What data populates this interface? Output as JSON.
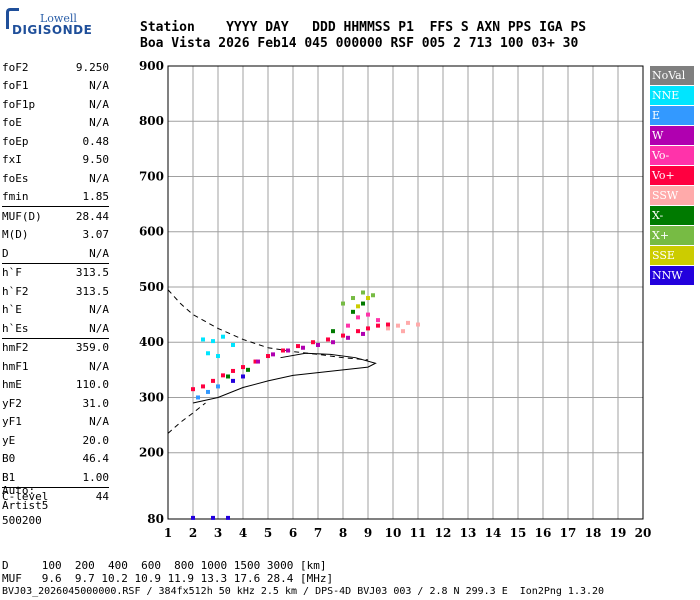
{
  "logo": {
    "brand_top": "Lowell",
    "brand_main": "DIGISONDE"
  },
  "header": {
    "line1": "Station    YYYY DAY   DDD HHMMSS P1  FFS S AXN PPS IGA PS",
    "line2": "Boa Vista 2026 Feb14 045 000000 RSF 005 2 713 100 03+ 30"
  },
  "parameters": [
    {
      "name": "foF2",
      "value": "9.250"
    },
    {
      "name": "foF1",
      "value": "N/A"
    },
    {
      "name": "foF1p",
      "value": "N/A"
    },
    {
      "name": "foE",
      "value": "N/A"
    },
    {
      "name": "foEp",
      "value": "0.48"
    },
    {
      "name": "fxI",
      "value": "9.50"
    },
    {
      "name": "foEs",
      "value": "N/A"
    },
    {
      "name": "fmin",
      "value": "1.85"
    },
    {
      "name": "MUF(D)",
      "value": "28.44",
      "sep": true
    },
    {
      "name": "M(D)",
      "value": "3.07"
    },
    {
      "name": "D",
      "value": "N/A"
    },
    {
      "name": "h`F",
      "value": "313.5",
      "sep": true
    },
    {
      "name": "h`F2",
      "value": "313.5"
    },
    {
      "name": "h`E",
      "value": "N/A"
    },
    {
      "name": "h`Es",
      "value": "N/A"
    },
    {
      "name": "hmF2",
      "value": "359.0",
      "sep": true
    },
    {
      "name": "hmF1",
      "value": "N/A"
    },
    {
      "name": "hmE",
      "value": "110.0"
    },
    {
      "name": "yF2",
      "value": "31.0"
    },
    {
      "name": "yF1",
      "value": "N/A"
    },
    {
      "name": "yE",
      "value": "20.0"
    },
    {
      "name": "B0",
      "value": "46.4"
    },
    {
      "name": "B1",
      "value": "1.00"
    },
    {
      "name": "C-level",
      "value": "44",
      "sep": true
    }
  ],
  "scaling": {
    "line1": "Auto:",
    "line2": "Artist5",
    "line3": "500200"
  },
  "muf_table": {
    "d_row": "D     100  200  400  600  800 1000 1500 3000 [km]",
    "muf_row": "MUF   9.6  9.7 10.2 10.9 11.9 13.3 17.6 28.4 [MHz]"
  },
  "footer": "BVJ03_2026045000000.RSF / 384fx512h 50 kHz 2.5 km / DPS-4D BVJ03 003 / 2.8 N 299.3 E  Ion2Png 1.3.20",
  "legend": [
    {
      "label": "NoVal",
      "color": "#7f7f7f"
    },
    {
      "label": "NNE",
      "color": "#00e5ff"
    },
    {
      "label": "E",
      "color": "#3399ff"
    },
    {
      "label": "W",
      "color": "#b000b0"
    },
    {
      "label": "Vo-",
      "color": "#ff33aa"
    },
    {
      "label": "Vo+",
      "color": "#ff0040"
    },
    {
      "label": "SSW",
      "color": "#ffaaaa"
    },
    {
      "label": "X-",
      "color": "#007a00"
    },
    {
      "label": "X+",
      "color": "#77bb44"
    },
    {
      "label": "SSE",
      "color": "#cccc00"
    },
    {
      "label": "NNW",
      "color": "#2200dd"
    }
  ],
  "chart_data": {
    "type": "scatter",
    "xlim": [
      1,
      20
    ],
    "ylim": [
      80,
      900
    ],
    "x_ticks": [
      1,
      2,
      3,
      4,
      5,
      6,
      7,
      8,
      9,
      10,
      11,
      12,
      13,
      14,
      15,
      16,
      17,
      18,
      19,
      20
    ],
    "y_ticks": [
      80,
      200,
      300,
      400,
      500,
      600,
      700,
      800,
      900
    ],
    "grid": true,
    "series": [
      {
        "name": "Vo+",
        "color": "#ff0040",
        "points": [
          [
            2.0,
            315
          ],
          [
            2.4,
            320
          ],
          [
            2.8,
            330
          ],
          [
            3.2,
            340
          ],
          [
            3.6,
            348
          ],
          [
            4.0,
            355
          ],
          [
            4.5,
            365
          ],
          [
            5.0,
            375
          ],
          [
            5.6,
            385
          ],
          [
            6.2,
            393
          ],
          [
            6.8,
            400
          ],
          [
            7.4,
            405
          ],
          [
            8.0,
            412
          ],
          [
            8.6,
            420
          ],
          [
            9.0,
            425
          ],
          [
            9.4,
            430
          ],
          [
            9.8,
            432
          ]
        ]
      },
      {
        "name": "W",
        "color": "#b000b0",
        "points": [
          [
            4.6,
            365
          ],
          [
            5.2,
            378
          ],
          [
            5.8,
            385
          ],
          [
            6.4,
            390
          ],
          [
            7.0,
            395
          ],
          [
            7.6,
            400
          ],
          [
            8.2,
            408
          ],
          [
            8.8,
            415
          ]
        ]
      },
      {
        "name": "Vo-",
        "color": "#ff33aa",
        "points": [
          [
            8.2,
            430
          ],
          [
            8.6,
            445
          ],
          [
            9.0,
            450
          ],
          [
            9.4,
            440
          ]
        ]
      },
      {
        "name": "SSW",
        "color": "#ffaaaa",
        "points": [
          [
            9.8,
            425
          ],
          [
            10.2,
            430
          ],
          [
            10.6,
            435
          ],
          [
            11.0,
            432
          ],
          [
            10.4,
            420
          ]
        ]
      },
      {
        "name": "NNE",
        "color": "#00e5ff",
        "points": [
          [
            2.4,
            405
          ],
          [
            2.8,
            402
          ],
          [
            3.2,
            410
          ],
          [
            3.6,
            395
          ],
          [
            2.6,
            380
          ],
          [
            3.0,
            375
          ]
        ]
      },
      {
        "name": "E",
        "color": "#3399ff",
        "points": [
          [
            2.2,
            300
          ],
          [
            2.6,
            310
          ],
          [
            3.0,
            320
          ]
        ]
      },
      {
        "name": "X-",
        "color": "#007a00",
        "points": [
          [
            3.4,
            338
          ],
          [
            4.2,
            350
          ],
          [
            7.6,
            420
          ],
          [
            8.4,
            455
          ],
          [
            8.8,
            470
          ]
        ]
      },
      {
        "name": "X+",
        "color": "#77bb44",
        "points": [
          [
            8.0,
            470
          ],
          [
            8.4,
            480
          ],
          [
            8.8,
            490
          ],
          [
            9.2,
            485
          ]
        ]
      },
      {
        "name": "SSE",
        "color": "#cccc00",
        "points": [
          [
            9.0,
            480
          ],
          [
            8.6,
            465
          ]
        ]
      },
      {
        "name": "NNW",
        "color": "#2200dd",
        "points": [
          [
            3.6,
            330
          ],
          [
            4.0,
            338
          ],
          [
            2.0,
            82
          ],
          [
            2.8,
            82
          ],
          [
            3.4,
            82
          ]
        ]
      }
    ],
    "profile_solid": [
      [
        2.0,
        290
      ],
      [
        3.0,
        300
      ],
      [
        4.0,
        318
      ],
      [
        5.0,
        330
      ],
      [
        6.0,
        340
      ],
      [
        7.0,
        345
      ],
      [
        8.0,
        350
      ],
      [
        9.0,
        355
      ],
      [
        9.3,
        362
      ],
      [
        8.5,
        372
      ],
      [
        7.5,
        378
      ],
      [
        6.5,
        380
      ],
      [
        5.5,
        372
      ]
    ],
    "profile_dashed": [
      [
        1.0,
        495
      ],
      [
        1.5,
        470
      ],
      [
        2.0,
        450
      ],
      [
        3.0,
        425
      ],
      [
        4.0,
        405
      ],
      [
        5.0,
        390
      ],
      [
        6.0,
        383
      ],
      [
        7.0,
        378
      ],
      [
        8.0,
        372
      ],
      [
        9.0,
        368
      ]
    ],
    "profile_lower": [
      [
        1.0,
        235
      ],
      [
        1.5,
        255
      ],
      [
        2.0,
        272
      ],
      [
        2.5,
        290
      ]
    ]
  }
}
